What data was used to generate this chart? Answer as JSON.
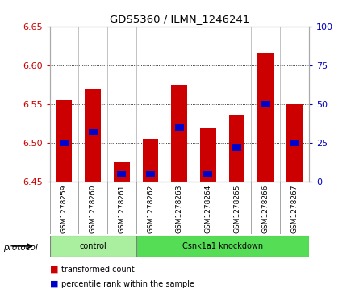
{
  "title": "GDS5360 / ILMN_1246241",
  "samples": [
    "GSM1278259",
    "GSM1278260",
    "GSM1278261",
    "GSM1278262",
    "GSM1278263",
    "GSM1278264",
    "GSM1278265",
    "GSM1278266",
    "GSM1278267"
  ],
  "transformed_counts": [
    6.555,
    6.57,
    6.475,
    6.505,
    6.575,
    6.52,
    6.535,
    6.615,
    6.55
  ],
  "percentile_ranks": [
    25,
    32,
    5,
    5,
    35,
    5,
    22,
    50,
    25
  ],
  "ylim_left": [
    6.45,
    6.65
  ],
  "ylim_right": [
    0,
    100
  ],
  "yticks_left": [
    6.45,
    6.5,
    6.55,
    6.6,
    6.65
  ],
  "yticks_right": [
    0,
    25,
    50,
    75,
    100
  ],
  "bar_color": "#cc0000",
  "blue_color": "#0000cc",
  "bar_width": 0.55,
  "groups": [
    {
      "label": "control",
      "start": 0,
      "end": 3,
      "color": "#aaeea0"
    },
    {
      "label": "Csnk1a1 knockdown",
      "start": 3,
      "end": 9,
      "color": "#55dd55"
    }
  ],
  "protocol_label": "protocol",
  "legend_items": [
    {
      "label": "transformed count",
      "color": "#cc0000"
    },
    {
      "label": "percentile rank within the sample",
      "color": "#0000cc"
    }
  ],
  "grid_color": "#000000",
  "left_tick_color": "#cc0000",
  "right_tick_color": "#0000bb",
  "plot_bg_color": "#ffffff",
  "label_area_bg": "#d3d3d3",
  "spine_color": "#aaaaaa"
}
